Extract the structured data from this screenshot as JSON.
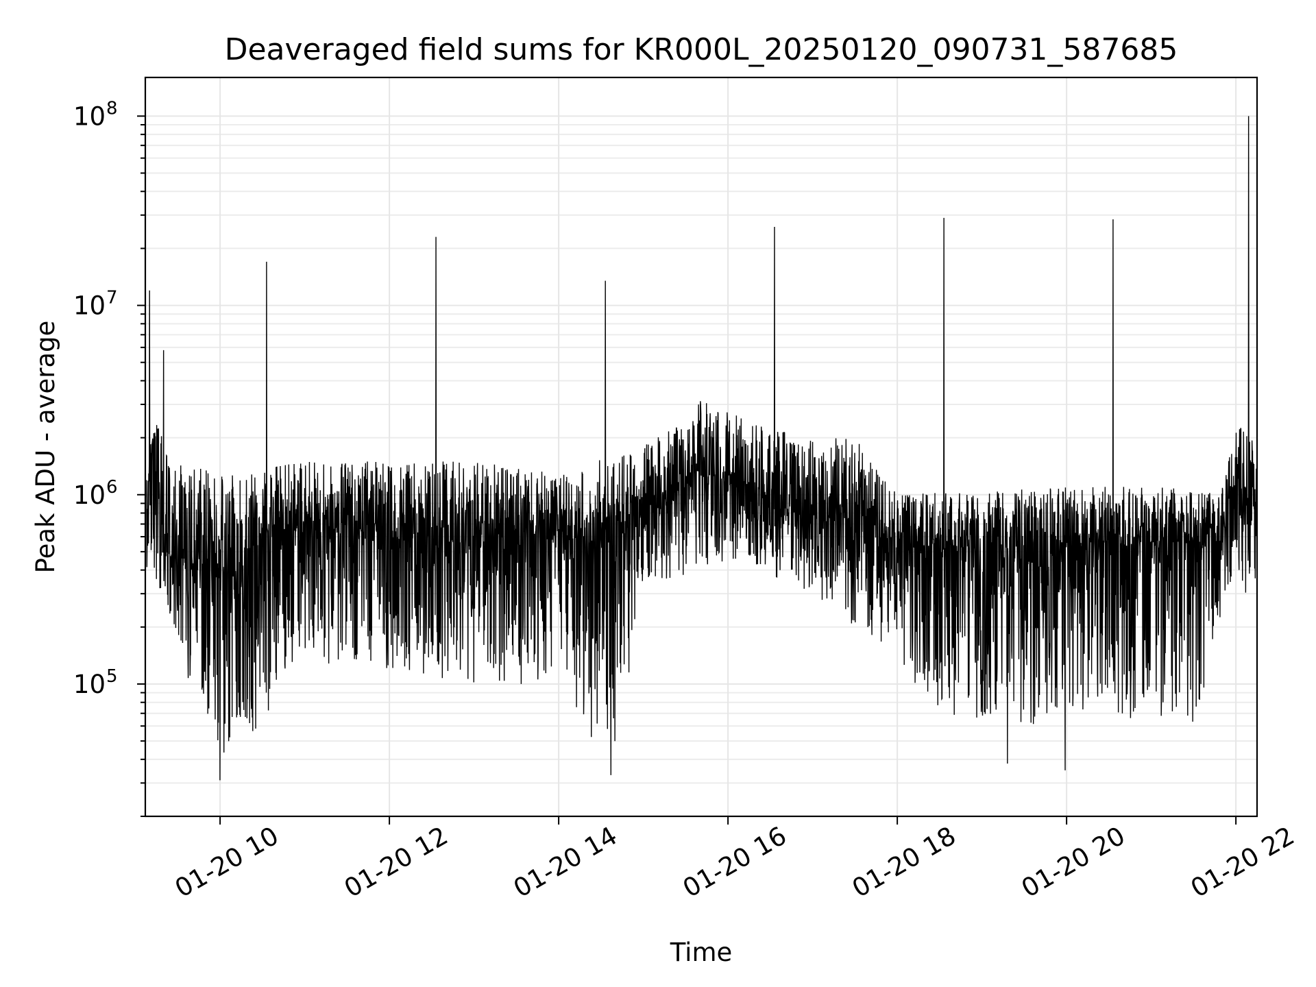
{
  "chart_data": {
    "type": "line",
    "title": "Deaveraged field sums for KR000L_20250120_090731_587685",
    "xlabel": "Time",
    "ylabel": "Peak ADU - average",
    "x_axis_type": "datetime",
    "x_range": [
      "2025-01-20 09:07",
      "2025-01-20 22:15"
    ],
    "x_ticks": [
      {
        "value": "2025-01-20 10:00",
        "label": "01-20 10"
      },
      {
        "value": "2025-01-20 12:00",
        "label": "01-20 12"
      },
      {
        "value": "2025-01-20 14:00",
        "label": "01-20 14"
      },
      {
        "value": "2025-01-20 16:00",
        "label": "01-20 16"
      },
      {
        "value": "2025-01-20 18:00",
        "label": "01-20 18"
      },
      {
        "value": "2025-01-20 20:00",
        "label": "01-20 20"
      },
      {
        "value": "2025-01-20 22:00",
        "label": "01-20 22"
      }
    ],
    "y_scale": "log",
    "ylim": [
      20000,
      160000000
    ],
    "y_ticks": [
      {
        "value": 100000,
        "base": "10",
        "exp": "5"
      },
      {
        "value": 1000000,
        "base": "10",
        "exp": "6"
      },
      {
        "value": 10000000,
        "base": "10",
        "exp": "7"
      },
      {
        "value": 100000000,
        "base": "10",
        "exp": "8"
      }
    ],
    "grid": true,
    "series": [
      {
        "color": "#000000",
        "baseline": [
          [
            "2025-01-20 09:07",
            900000
          ],
          [
            "2025-01-20 09:12",
            1900000
          ],
          [
            "2025-01-20 09:15",
            2000000
          ],
          [
            "2025-01-20 09:18",
            500000
          ],
          [
            "2025-01-20 09:40",
            450000
          ],
          [
            "2025-01-20 10:10",
            380000
          ],
          [
            "2025-01-20 10:35",
            650000
          ],
          [
            "2025-01-20 11:30",
            650000
          ],
          [
            "2025-01-20 13:00",
            550000
          ],
          [
            "2025-01-20 14:00",
            650000
          ],
          [
            "2025-01-20 14:30",
            520000
          ],
          [
            "2025-01-20 15:00",
            900000
          ],
          [
            "2025-01-20 15:40",
            1350000
          ],
          [
            "2025-01-20 16:20",
            1000000
          ],
          [
            "2025-01-20 17:00",
            750000
          ],
          [
            "2025-01-20 17:40",
            750000
          ],
          [
            "2025-01-20 18:00",
            550000
          ],
          [
            "2025-01-20 19:00",
            520000
          ],
          [
            "2025-01-20 20:00",
            560000
          ],
          [
            "2025-01-20 21:50",
            560000
          ],
          [
            "2025-01-20 21:55",
            950000
          ],
          [
            "2025-01-20 22:10",
            1000000
          ],
          [
            "2025-01-20 22:15",
            750000
          ]
        ],
        "lower_envelope": [
          [
            "2025-01-20 09:07",
            400000
          ],
          [
            "2025-01-20 09:20",
            300000
          ],
          [
            "2025-01-20 09:40",
            90000
          ],
          [
            "2025-01-20 10:00",
            40000
          ],
          [
            "2025-01-20 10:30",
            60000
          ],
          [
            "2025-01-20 11:00",
            130000
          ],
          [
            "2025-01-20 12:00",
            120000
          ],
          [
            "2025-01-20 13:00",
            100000
          ],
          [
            "2025-01-20 14:05",
            100000
          ],
          [
            "2025-01-20 14:20",
            50000
          ],
          [
            "2025-01-20 14:40",
            45000
          ],
          [
            "2025-01-20 15:00",
            300000
          ],
          [
            "2025-01-20 16:00",
            450000
          ],
          [
            "2025-01-20 17:00",
            300000
          ],
          [
            "2025-01-20 18:00",
            130000
          ],
          [
            "2025-01-20 18:30",
            70000
          ],
          [
            "2025-01-20 19:30",
            60000
          ],
          [
            "2025-01-20 20:30",
            70000
          ],
          [
            "2025-01-20 21:30",
            55000
          ],
          [
            "2025-01-20 21:55",
            300000
          ],
          [
            "2025-01-20 22:15",
            300000
          ]
        ],
        "upper_envelope": [
          [
            "2025-01-20 09:07",
            1500000
          ],
          [
            "2025-01-20 09:15",
            2700000
          ],
          [
            "2025-01-20 09:25",
            1500000
          ],
          [
            "2025-01-20 10:00",
            1300000
          ],
          [
            "2025-01-20 11:00",
            1500000
          ],
          [
            "2025-01-20 12:00",
            1500000
          ],
          [
            "2025-01-20 13:00",
            1500000
          ],
          [
            "2025-01-20 14:00",
            1300000
          ],
          [
            "2025-01-20 15:00",
            1800000
          ],
          [
            "2025-01-20 15:40",
            3200000
          ],
          [
            "2025-01-20 16:30",
            2200000
          ],
          [
            "2025-01-20 17:30",
            2000000
          ],
          [
            "2025-01-20 18:00",
            1000000
          ],
          [
            "2025-01-20 20:00",
            1100000
          ],
          [
            "2025-01-20 21:50",
            1100000
          ],
          [
            "2025-01-20 22:00",
            2500000
          ],
          [
            "2025-01-20 22:15",
            2000000
          ]
        ],
        "spikes": [
          [
            "2025-01-20 09:10",
            12000000
          ],
          [
            "2025-01-20 09:20",
            5800000
          ],
          [
            "2025-01-20 10:33",
            17000000
          ],
          [
            "2025-01-20 12:33",
            23000000
          ],
          [
            "2025-01-20 14:33",
            13500000
          ],
          [
            "2025-01-20 16:33",
            26000000
          ],
          [
            "2025-01-20 18:33",
            29000000
          ],
          [
            "2025-01-20 20:33",
            28500000
          ],
          [
            "2025-01-20 22:09",
            100000000
          ]
        ],
        "dips": [
          [
            "2025-01-20 10:00",
            31000
          ],
          [
            "2025-01-20 14:37",
            33000
          ],
          [
            "2025-01-20 19:18",
            38000
          ],
          [
            "2025-01-20 19:59",
            35000
          ]
        ]
      }
    ]
  }
}
